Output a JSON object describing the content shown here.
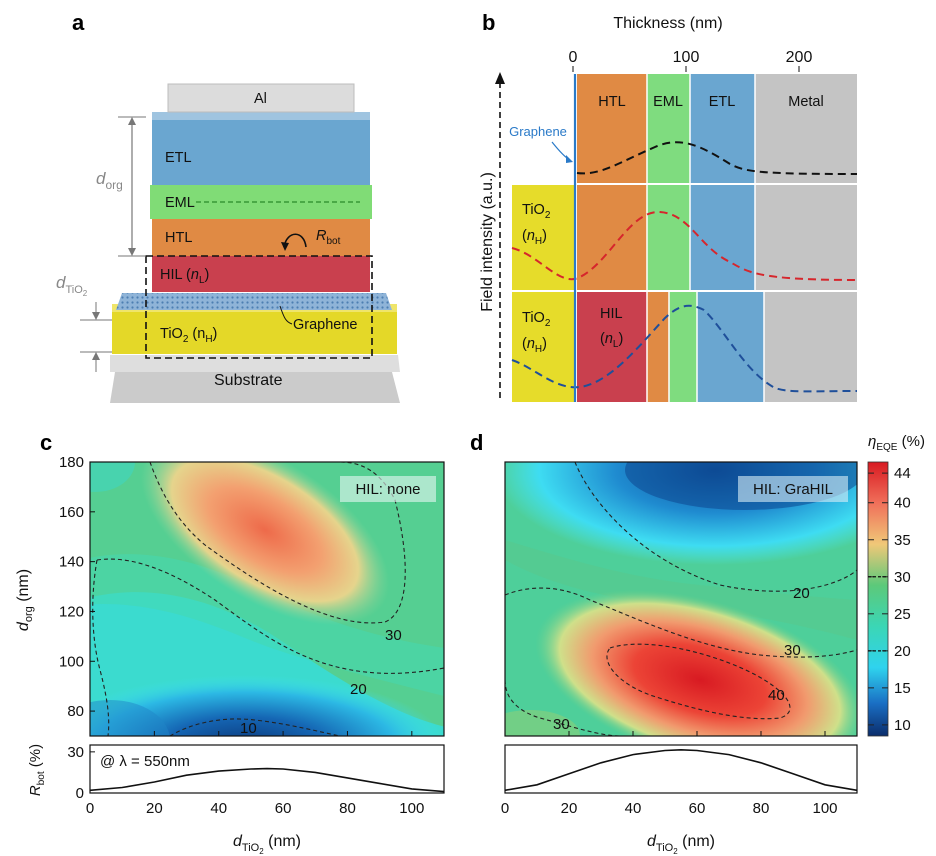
{
  "panels": {
    "a": "a",
    "b": "b",
    "c": "c",
    "d": "d"
  },
  "colors": {
    "al": "#d8d8d8",
    "etl": "#6aa6d0",
    "eml": "#7fdc7f",
    "htl": "#e08a44",
    "hil": "#c9404e",
    "tio2": "#e6dc2a",
    "substrate": "#cfcfcf",
    "metal": "#c4c4c4",
    "field_black": "#111111",
    "field_red": "#d6262c",
    "field_blue": "#1f4f9a",
    "graphene_label": "#2a7ac8"
  },
  "stack": {
    "al": "Al",
    "etl": "ETL",
    "eml": "EML",
    "htl": "HTL",
    "hil": "HIL (",
    "hil_n": "n",
    "hil_sub": "L",
    "hil_close": ")",
    "tio2": "TiO",
    "tio2_sub": "2",
    "tio2_n": " (n",
    "tio2_nsub": "H",
    "tio2_close": ")",
    "graphene": "Graphene",
    "substrate": "Substrate",
    "rbot": "R",
    "rbot_sub": "bot",
    "dorg": "d",
    "dorg_sub": "org",
    "dtio2": "d",
    "dtio2_sub": "TiO",
    "dtio2_subsub": "2"
  },
  "field": {
    "xlabel": "Thickness (nm)",
    "ylabel": "Field intensity (a.u.)",
    "ticks": [
      0,
      100,
      200
    ],
    "graphene": "Graphene",
    "row1": {
      "htl": "HTL",
      "eml": "EML",
      "etl": "ETL",
      "metal": "Metal"
    },
    "row2": {
      "tio2": "TiO",
      "tio2_sub": "2",
      "n": "n",
      "n_sub": "H"
    },
    "row3": {
      "tio2": "TiO",
      "tio2_sub": "2",
      "n": "n",
      "n_sub": "H",
      "hil": "HIL",
      "hil_n": "n",
      "hil_nsub": "L"
    }
  },
  "chart_data": [
    {
      "type": "heatmap",
      "panel": "c",
      "annotation": "HIL: none",
      "xlabel": "d_TiO2 (nm)",
      "ylabel": "d_org (nm)",
      "xlim": [
        0,
        110
      ],
      "ylim": [
        70,
        180
      ],
      "xticks": [
        0,
        20,
        40,
        60,
        80,
        100
      ],
      "yticks": [
        80,
        100,
        120,
        140,
        160,
        180
      ],
      "contours": [
        "10",
        "20",
        "30"
      ],
      "sub": {
        "type": "line",
        "ylabel": "R_bot (%)",
        "yticks": [
          0,
          30
        ],
        "ylim": [
          0,
          35
        ],
        "annotation": "@ λ = 550nm",
        "x": [
          0,
          10,
          20,
          30,
          40,
          50,
          55,
          60,
          70,
          80,
          90,
          100,
          110
        ],
        "y": [
          2,
          4,
          8,
          13,
          16,
          17.5,
          17.8,
          17.5,
          15,
          11,
          7,
          3,
          1
        ]
      }
    },
    {
      "type": "heatmap",
      "panel": "d",
      "annotation": "HIL: GraHIL",
      "xlabel": "d_TiO2 (nm)",
      "xlim": [
        0,
        110
      ],
      "ylim": [
        70,
        180
      ],
      "xticks": [
        0,
        20,
        40,
        60,
        80,
        100
      ],
      "contours": [
        "20",
        "30",
        "40",
        "30"
      ],
      "colorbar": {
        "label": "η_EQE (%)",
        "ticks": [
          10,
          15,
          20,
          25,
          30,
          35,
          40,
          44
        ]
      },
      "sub": {
        "type": "line",
        "ylim": [
          0,
          35
        ],
        "x": [
          0,
          10,
          20,
          30,
          40,
          50,
          55,
          60,
          70,
          80,
          90,
          100,
          110
        ],
        "y": [
          2,
          6,
          14,
          22,
          28,
          31,
          31.5,
          31,
          28,
          22,
          14,
          6,
          2
        ]
      }
    }
  ]
}
